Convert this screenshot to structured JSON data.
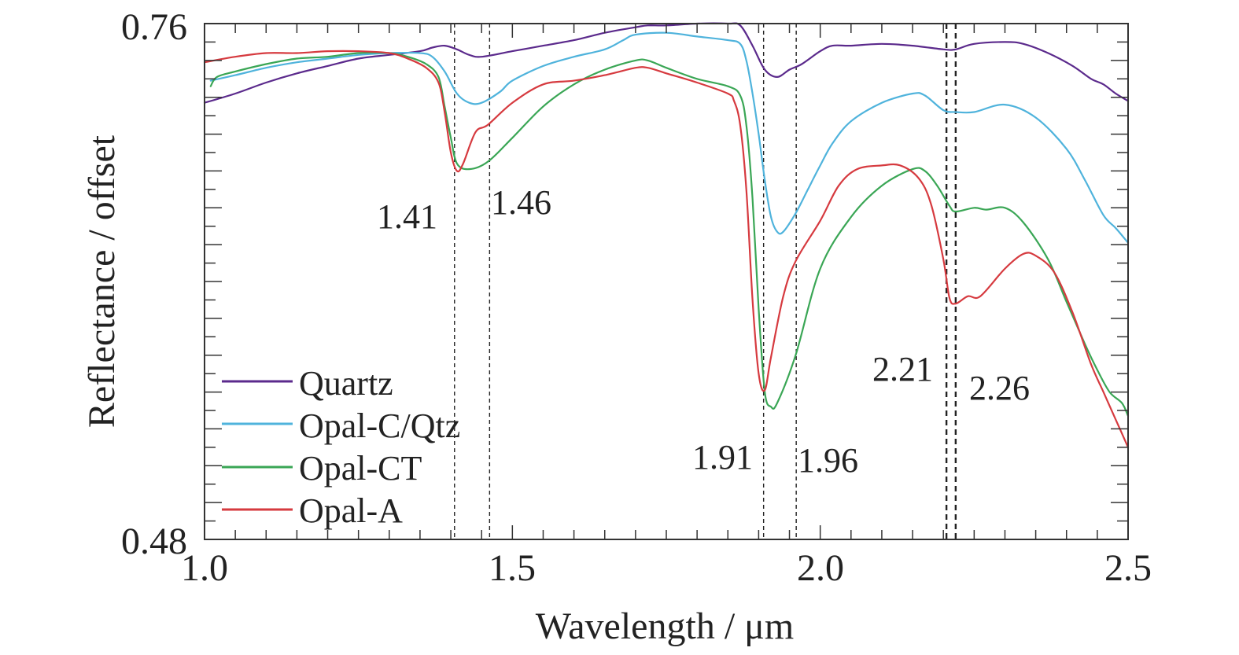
{
  "chart_data": {
    "type": "line",
    "title": "",
    "xlabel": "Wavelength / μm",
    "ylabel": "Reflectance / offset",
    "xlim": [
      1.0,
      2.5
    ],
    "ylim": [
      0.48,
      0.76
    ],
    "x_ticks": [
      1.0,
      1.5,
      2.0,
      2.5
    ],
    "x_tick_labels": [
      "1.0",
      "1.5",
      "2.0",
      "2.5"
    ],
    "y_tick_labels": [
      "0.76",
      "0.48"
    ],
    "x_minor_step": 0.05,
    "y_minor_step": 0.01,
    "grid": false,
    "legend_position": "bottom-left",
    "series": [
      {
        "name": "Quartz",
        "color": "#5b2a8c",
        "points": [
          [
            1.0,
            0.717
          ],
          [
            1.05,
            0.722
          ],
          [
            1.1,
            0.728
          ],
          [
            1.15,
            0.733
          ],
          [
            1.2,
            0.737
          ],
          [
            1.25,
            0.741
          ],
          [
            1.3,
            0.743
          ],
          [
            1.35,
            0.745
          ],
          [
            1.37,
            0.747
          ],
          [
            1.39,
            0.748
          ],
          [
            1.41,
            0.746
          ],
          [
            1.43,
            0.743
          ],
          [
            1.45,
            0.742
          ],
          [
            1.5,
            0.745
          ],
          [
            1.55,
            0.748
          ],
          [
            1.6,
            0.751
          ],
          [
            1.65,
            0.755
          ],
          [
            1.7,
            0.758
          ],
          [
            1.72,
            0.759
          ],
          [
            1.75,
            0.759
          ],
          [
            1.8,
            0.76
          ],
          [
            1.85,
            0.76
          ],
          [
            1.87,
            0.759
          ],
          [
            1.89,
            0.748
          ],
          [
            1.91,
            0.735
          ],
          [
            1.93,
            0.731
          ],
          [
            1.95,
            0.735
          ],
          [
            1.97,
            0.738
          ],
          [
            2.0,
            0.745
          ],
          [
            2.02,
            0.748
          ],
          [
            2.05,
            0.748
          ],
          [
            2.1,
            0.749
          ],
          [
            2.15,
            0.748
          ],
          [
            2.2,
            0.746
          ],
          [
            2.22,
            0.746
          ],
          [
            2.25,
            0.749
          ],
          [
            2.3,
            0.75
          ],
          [
            2.33,
            0.749
          ],
          [
            2.37,
            0.744
          ],
          [
            2.41,
            0.737
          ],
          [
            2.44,
            0.73
          ],
          [
            2.46,
            0.727
          ],
          [
            2.48,
            0.722
          ],
          [
            2.5,
            0.718
          ]
        ]
      },
      {
        "name": "Opal-C/Qtz",
        "color": "#4fb3dc",
        "points": [
          [
            1.01,
            0.729
          ],
          [
            1.05,
            0.732
          ],
          [
            1.1,
            0.736
          ],
          [
            1.15,
            0.739
          ],
          [
            1.2,
            0.741
          ],
          [
            1.25,
            0.743
          ],
          [
            1.3,
            0.744
          ],
          [
            1.35,
            0.744
          ],
          [
            1.37,
            0.742
          ],
          [
            1.39,
            0.734
          ],
          [
            1.41,
            0.722
          ],
          [
            1.43,
            0.717
          ],
          [
            1.45,
            0.717
          ],
          [
            1.48,
            0.723
          ],
          [
            1.5,
            0.729
          ],
          [
            1.55,
            0.737
          ],
          [
            1.6,
            0.742
          ],
          [
            1.65,
            0.746
          ],
          [
            1.68,
            0.751
          ],
          [
            1.7,
            0.754
          ],
          [
            1.75,
            0.755
          ],
          [
            1.8,
            0.753
          ],
          [
            1.85,
            0.751
          ],
          [
            1.87,
            0.749
          ],
          [
            1.88,
            0.74
          ],
          [
            1.89,
            0.722
          ],
          [
            1.9,
            0.7
          ],
          [
            1.91,
            0.675
          ],
          [
            1.92,
            0.655
          ],
          [
            1.93,
            0.647
          ],
          [
            1.94,
            0.647
          ],
          [
            1.96,
            0.657
          ],
          [
            1.98,
            0.67
          ],
          [
            2.0,
            0.683
          ],
          [
            2.02,
            0.695
          ],
          [
            2.05,
            0.707
          ],
          [
            2.1,
            0.717
          ],
          [
            2.15,
            0.722
          ],
          [
            2.17,
            0.721
          ],
          [
            2.2,
            0.713
          ],
          [
            2.22,
            0.712
          ],
          [
            2.25,
            0.712
          ],
          [
            2.3,
            0.716
          ],
          [
            2.35,
            0.709
          ],
          [
            2.4,
            0.692
          ],
          [
            2.43,
            0.675
          ],
          [
            2.46,
            0.656
          ],
          [
            2.48,
            0.649
          ],
          [
            2.5,
            0.641
          ]
        ]
      },
      {
        "name": "Opal-CT",
        "color": "#3aa655",
        "points": [
          [
            1.01,
            0.726
          ],
          [
            1.02,
            0.731
          ],
          [
            1.05,
            0.734
          ],
          [
            1.1,
            0.738
          ],
          [
            1.15,
            0.741
          ],
          [
            1.2,
            0.742
          ],
          [
            1.25,
            0.744
          ],
          [
            1.3,
            0.744
          ],
          [
            1.33,
            0.742
          ],
          [
            1.36,
            0.738
          ],
          [
            1.38,
            0.731
          ],
          [
            1.39,
            0.715
          ],
          [
            1.4,
            0.698
          ],
          [
            1.41,
            0.684
          ],
          [
            1.43,
            0.681
          ],
          [
            1.46,
            0.685
          ],
          [
            1.5,
            0.698
          ],
          [
            1.55,
            0.715
          ],
          [
            1.6,
            0.727
          ],
          [
            1.65,
            0.735
          ],
          [
            1.7,
            0.74
          ],
          [
            1.72,
            0.74
          ],
          [
            1.75,
            0.736
          ],
          [
            1.8,
            0.73
          ],
          [
            1.85,
            0.726
          ],
          [
            1.87,
            0.721
          ],
          [
            1.88,
            0.705
          ],
          [
            1.89,
            0.665
          ],
          [
            1.9,
            0.605
          ],
          [
            1.91,
            0.56
          ],
          [
            1.92,
            0.552
          ],
          [
            1.93,
            0.554
          ],
          [
            1.96,
            0.58
          ],
          [
            2.0,
            0.627
          ],
          [
            2.05,
            0.655
          ],
          [
            2.1,
            0.672
          ],
          [
            2.15,
            0.681
          ],
          [
            2.17,
            0.68
          ],
          [
            2.19,
            0.672
          ],
          [
            2.21,
            0.661
          ],
          [
            2.22,
            0.658
          ],
          [
            2.25,
            0.66
          ],
          [
            2.27,
            0.659
          ],
          [
            2.3,
            0.66
          ],
          [
            2.33,
            0.652
          ],
          [
            2.37,
            0.632
          ],
          [
            2.4,
            0.609
          ],
          [
            2.43,
            0.586
          ],
          [
            2.45,
            0.572
          ],
          [
            2.47,
            0.56
          ],
          [
            2.49,
            0.554
          ],
          [
            2.5,
            0.547
          ]
        ]
      },
      {
        "name": "Opal-A",
        "color": "#d63a3f",
        "points": [
          [
            1.0,
            0.739
          ],
          [
            1.05,
            0.742
          ],
          [
            1.1,
            0.744
          ],
          [
            1.15,
            0.744
          ],
          [
            1.2,
            0.745
          ],
          [
            1.25,
            0.745
          ],
          [
            1.3,
            0.744
          ],
          [
            1.33,
            0.741
          ],
          [
            1.36,
            0.736
          ],
          [
            1.38,
            0.728
          ],
          [
            1.39,
            0.712
          ],
          [
            1.4,
            0.69
          ],
          [
            1.41,
            0.68
          ],
          [
            1.42,
            0.684
          ],
          [
            1.44,
            0.701
          ],
          [
            1.46,
            0.705
          ],
          [
            1.5,
            0.717
          ],
          [
            1.55,
            0.727
          ],
          [
            1.6,
            0.729
          ],
          [
            1.65,
            0.732
          ],
          [
            1.7,
            0.736
          ],
          [
            1.72,
            0.736
          ],
          [
            1.75,
            0.733
          ],
          [
            1.8,
            0.728
          ],
          [
            1.85,
            0.722
          ],
          [
            1.86,
            0.718
          ],
          [
            1.87,
            0.705
          ],
          [
            1.88,
            0.67
          ],
          [
            1.89,
            0.61
          ],
          [
            1.9,
            0.57
          ],
          [
            1.91,
            0.561
          ],
          [
            1.92,
            0.579
          ],
          [
            1.94,
            0.612
          ],
          [
            1.96,
            0.631
          ],
          [
            2.0,
            0.653
          ],
          [
            2.03,
            0.672
          ],
          [
            2.06,
            0.681
          ],
          [
            2.1,
            0.683
          ],
          [
            2.13,
            0.683
          ],
          [
            2.16,
            0.676
          ],
          [
            2.18,
            0.662
          ],
          [
            2.2,
            0.632
          ],
          [
            2.21,
            0.611
          ],
          [
            2.22,
            0.608
          ],
          [
            2.24,
            0.612
          ],
          [
            2.26,
            0.612
          ],
          [
            2.3,
            0.627
          ],
          [
            2.33,
            0.635
          ],
          [
            2.35,
            0.634
          ],
          [
            2.38,
            0.625
          ],
          [
            2.41,
            0.603
          ],
          [
            2.44,
            0.575
          ],
          [
            2.46,
            0.56
          ],
          [
            2.48,
            0.545
          ],
          [
            2.5,
            0.53
          ]
        ]
      }
    ],
    "annotations": [
      {
        "label": "1.41",
        "x": 1.41,
        "style": "dashed",
        "side": "left"
      },
      {
        "label": "1.46",
        "x": 1.46,
        "style": "dashed",
        "side": "right"
      },
      {
        "label": "1.91",
        "x": 1.91,
        "style": "dashed",
        "side": "left"
      },
      {
        "label": "1.96",
        "x": 1.96,
        "style": "dashed",
        "side": "right"
      },
      {
        "label": "2.21",
        "x": 2.21,
        "style": "bold-dashed",
        "side": "left"
      },
      {
        "label": "2.26",
        "x": 2.26,
        "style": "bold-dashed",
        "side": "right"
      }
    ]
  }
}
